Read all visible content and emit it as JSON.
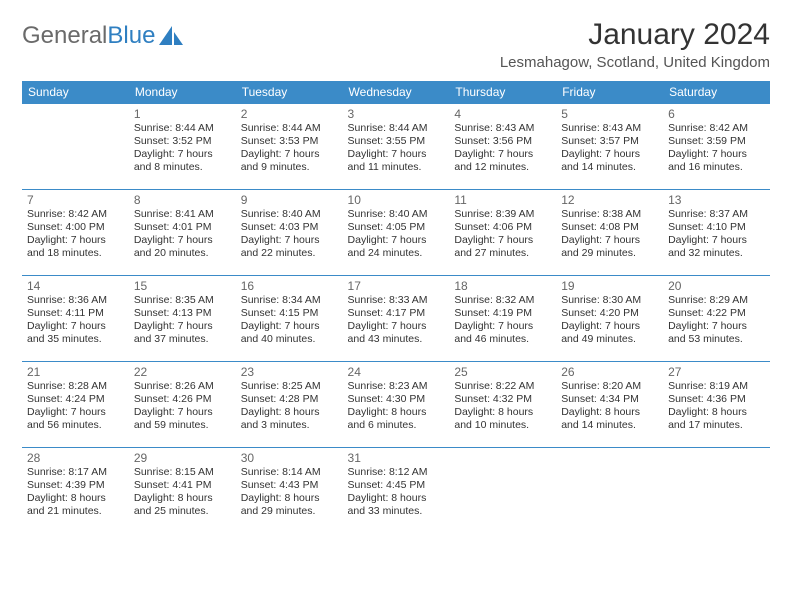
{
  "logo": {
    "text1": "General",
    "text2": "Blue"
  },
  "title": "January 2024",
  "location": "Lesmahagow, Scotland, United Kingdom",
  "colors": {
    "header_bg": "#3b8bc8",
    "header_text": "#ffffff",
    "border": "#3b8bc8",
    "logo_gray": "#6a6a6a",
    "logo_blue": "#2f7fc1",
    "text": "#333333"
  },
  "typography": {
    "title_fontsize": 30,
    "location_fontsize": 15,
    "dayheader_fontsize": 12,
    "daynum_fontsize": 12,
    "info_fontsize": 10.5
  },
  "day_headers": [
    "Sunday",
    "Monday",
    "Tuesday",
    "Wednesday",
    "Thursday",
    "Friday",
    "Saturday"
  ],
  "weeks": [
    [
      null,
      {
        "n": "1",
        "sr": "8:44 AM",
        "ss": "3:52 PM",
        "dl": "7 hours and 8 minutes."
      },
      {
        "n": "2",
        "sr": "8:44 AM",
        "ss": "3:53 PM",
        "dl": "7 hours and 9 minutes."
      },
      {
        "n": "3",
        "sr": "8:44 AM",
        "ss": "3:55 PM",
        "dl": "7 hours and 11 minutes."
      },
      {
        "n": "4",
        "sr": "8:43 AM",
        "ss": "3:56 PM",
        "dl": "7 hours and 12 minutes."
      },
      {
        "n": "5",
        "sr": "8:43 AM",
        "ss": "3:57 PM",
        "dl": "7 hours and 14 minutes."
      },
      {
        "n": "6",
        "sr": "8:42 AM",
        "ss": "3:59 PM",
        "dl": "7 hours and 16 minutes."
      }
    ],
    [
      {
        "n": "7",
        "sr": "8:42 AM",
        "ss": "4:00 PM",
        "dl": "7 hours and 18 minutes."
      },
      {
        "n": "8",
        "sr": "8:41 AM",
        "ss": "4:01 PM",
        "dl": "7 hours and 20 minutes."
      },
      {
        "n": "9",
        "sr": "8:40 AM",
        "ss": "4:03 PM",
        "dl": "7 hours and 22 minutes."
      },
      {
        "n": "10",
        "sr": "8:40 AM",
        "ss": "4:05 PM",
        "dl": "7 hours and 24 minutes."
      },
      {
        "n": "11",
        "sr": "8:39 AM",
        "ss": "4:06 PM",
        "dl": "7 hours and 27 minutes."
      },
      {
        "n": "12",
        "sr": "8:38 AM",
        "ss": "4:08 PM",
        "dl": "7 hours and 29 minutes."
      },
      {
        "n": "13",
        "sr": "8:37 AM",
        "ss": "4:10 PM",
        "dl": "7 hours and 32 minutes."
      }
    ],
    [
      {
        "n": "14",
        "sr": "8:36 AM",
        "ss": "4:11 PM",
        "dl": "7 hours and 35 minutes."
      },
      {
        "n": "15",
        "sr": "8:35 AM",
        "ss": "4:13 PM",
        "dl": "7 hours and 37 minutes."
      },
      {
        "n": "16",
        "sr": "8:34 AM",
        "ss": "4:15 PM",
        "dl": "7 hours and 40 minutes."
      },
      {
        "n": "17",
        "sr": "8:33 AM",
        "ss": "4:17 PM",
        "dl": "7 hours and 43 minutes."
      },
      {
        "n": "18",
        "sr": "8:32 AM",
        "ss": "4:19 PM",
        "dl": "7 hours and 46 minutes."
      },
      {
        "n": "19",
        "sr": "8:30 AM",
        "ss": "4:20 PM",
        "dl": "7 hours and 49 minutes."
      },
      {
        "n": "20",
        "sr": "8:29 AM",
        "ss": "4:22 PM",
        "dl": "7 hours and 53 minutes."
      }
    ],
    [
      {
        "n": "21",
        "sr": "8:28 AM",
        "ss": "4:24 PM",
        "dl": "7 hours and 56 minutes."
      },
      {
        "n": "22",
        "sr": "8:26 AM",
        "ss": "4:26 PM",
        "dl": "7 hours and 59 minutes."
      },
      {
        "n": "23",
        "sr": "8:25 AM",
        "ss": "4:28 PM",
        "dl": "8 hours and 3 minutes."
      },
      {
        "n": "24",
        "sr": "8:23 AM",
        "ss": "4:30 PM",
        "dl": "8 hours and 6 minutes."
      },
      {
        "n": "25",
        "sr": "8:22 AM",
        "ss": "4:32 PM",
        "dl": "8 hours and 10 minutes."
      },
      {
        "n": "26",
        "sr": "8:20 AM",
        "ss": "4:34 PM",
        "dl": "8 hours and 14 minutes."
      },
      {
        "n": "27",
        "sr": "8:19 AM",
        "ss": "4:36 PM",
        "dl": "8 hours and 17 minutes."
      }
    ],
    [
      {
        "n": "28",
        "sr": "8:17 AM",
        "ss": "4:39 PM",
        "dl": "8 hours and 21 minutes."
      },
      {
        "n": "29",
        "sr": "8:15 AM",
        "ss": "4:41 PM",
        "dl": "8 hours and 25 minutes."
      },
      {
        "n": "30",
        "sr": "8:14 AM",
        "ss": "4:43 PM",
        "dl": "8 hours and 29 minutes."
      },
      {
        "n": "31",
        "sr": "8:12 AM",
        "ss": "4:45 PM",
        "dl": "8 hours and 33 minutes."
      },
      null,
      null,
      null
    ]
  ],
  "labels": {
    "sunrise": "Sunrise:",
    "sunset": "Sunset:",
    "daylight": "Daylight:"
  }
}
